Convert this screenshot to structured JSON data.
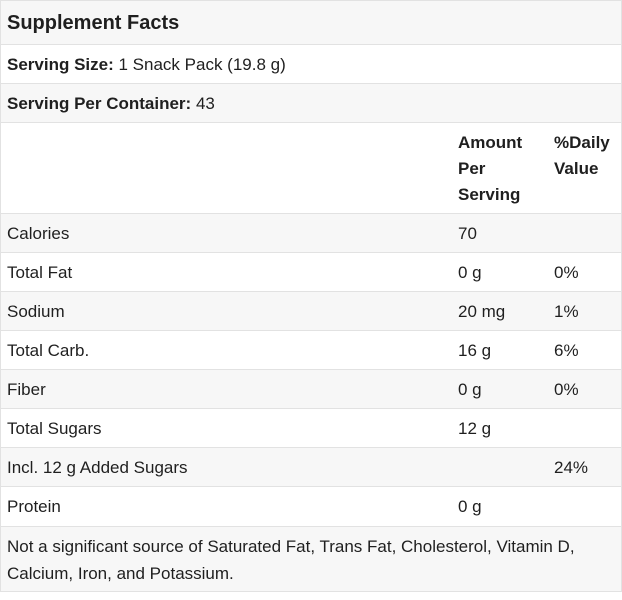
{
  "title": "Supplement Facts",
  "serving_size": {
    "label": "Serving Size:",
    "value": "1 Snack Pack (19.8 g)"
  },
  "servings_per_container": {
    "label": "Serving Per Container:",
    "value": "43"
  },
  "columns": {
    "amount": [
      "Amount",
      "Per",
      "Serving"
    ],
    "daily_value": [
      "%Daily",
      "Value"
    ]
  },
  "nutrients": [
    {
      "name": "Calories",
      "amount": "70",
      "dv": ""
    },
    {
      "name": "Total Fat",
      "amount": "0 g",
      "dv": "0%"
    },
    {
      "name": "Sodium",
      "amount": "20 mg",
      "dv": "1%"
    },
    {
      "name": "Total Carb.",
      "amount": "16 g",
      "dv": "6%"
    },
    {
      "name": "Fiber",
      "amount": "0 g",
      "dv": "0%"
    },
    {
      "name": "Total Sugars",
      "amount": "12 g",
      "dv": ""
    },
    {
      "name": "Incl. 12 g Added Sugars",
      "amount": "",
      "dv": "24%"
    },
    {
      "name": "Protein",
      "amount": "0 g",
      "dv": ""
    }
  ],
  "footnote": "Not a significant source of Saturated Fat, Trans Fat, Cholesterol, Vitamin D, Calcium, Iron, and Potassium."
}
